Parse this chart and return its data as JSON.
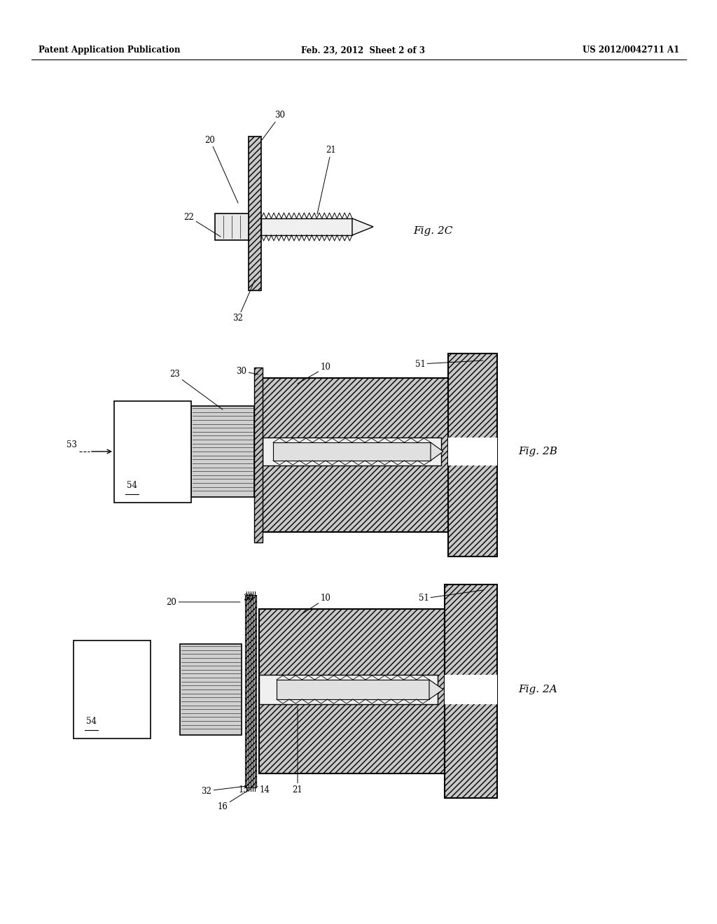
{
  "bg_color": "#ffffff",
  "header_left": "Patent Application Publication",
  "header_mid": "Feb. 23, 2012  Sheet 2 of 3",
  "header_right": "US 2012/0042711 A1",
  "hatch_fc": "#c8c8c8",
  "hatch_fc2": "#d8d8d8",
  "bore_fc": "#f0f0f0",
  "bolt_fc": "#e8e8e8",
  "box_fc": "#ffffff",
  "thread_fc": "#d0d0d0"
}
